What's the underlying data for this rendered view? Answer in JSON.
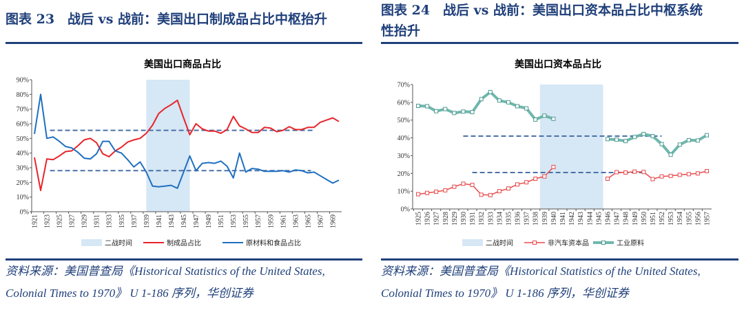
{
  "left": {
    "figure_title": "图表 23　战后 vs 战前：美国出口制成品占比中枢抬升",
    "source_line1": "资料来源：美国普查局《Historical Statistics of the United States,",
    "source_line2": "Colonial Times to 1970》 U 1-186 序列，华创证券"
  },
  "right": {
    "figure_title_line1": "图表 24　战后 vs 战前：美国出口资本品占比中枢系统",
    "figure_title_line2": "性抬升",
    "source_line1": "资料来源：美国普查局《Historical Statistics of the United States,",
    "source_line2": "Colonial Times to 1970》 U 1-186 序列，华创证券"
  },
  "colors": {
    "accent": "#1f3f7a",
    "red": "#e8242a",
    "blue": "#1f6fc0",
    "teal": "#6fb7ad",
    "capital_red": "#e8484a",
    "shade": "#d6e7f5",
    "dash": "#4a70a8"
  },
  "chart_data": [
    {
      "type": "line",
      "title": "美国出口商品占比",
      "ylim": [
        0,
        90
      ],
      "yticks": [
        "0%",
        "10%",
        "20%",
        "30%",
        "40%",
        "50%",
        "60%",
        "70%",
        "80%",
        "90%"
      ],
      "x": [
        1921,
        1922,
        1923,
        1924,
        1925,
        1926,
        1927,
        1928,
        1929,
        1930,
        1931,
        1932,
        1933,
        1934,
        1935,
        1936,
        1937,
        1938,
        1939,
        1940,
        1941,
        1942,
        1943,
        1944,
        1945,
        1946,
        1947,
        1948,
        1949,
        1950,
        1951,
        1952,
        1953,
        1954,
        1955,
        1956,
        1957,
        1958,
        1959,
        1960,
        1961,
        1962,
        1963,
        1964,
        1965,
        1966,
        1967,
        1968,
        1969,
        1970
      ],
      "xtick_labels": [
        "1921",
        "1923",
        "1925",
        "1927",
        "1929",
        "1931",
        "1933",
        "1935",
        "1937",
        "1939",
        "1941",
        "1943",
        "1945",
        "1947",
        "1949",
        "1951",
        "1953",
        "1955",
        "1957",
        "1959",
        "1961",
        "1963",
        "1965",
        "1967",
        "1969"
      ],
      "shaded_period": {
        "name": "二战时间",
        "from": 1939,
        "to": 1946
      },
      "series": [
        {
          "name": "制成品占比",
          "color": "#e8242a",
          "values": [
            37,
            14.5,
            36,
            35.5,
            38,
            41,
            41.5,
            45,
            49,
            50,
            47,
            39.5,
            37.5,
            41.5,
            44,
            47.5,
            49,
            50,
            53.5,
            59,
            67,
            70.5,
            73,
            76,
            64,
            52.5,
            60,
            56.5,
            55,
            55,
            53.5,
            56,
            65,
            58.5,
            56.5,
            54,
            54,
            57.5,
            57,
            54.5,
            55.5,
            58,
            56,
            56,
            57.5,
            57.5,
            61,
            62.5,
            64,
            61.5
          ]
        },
        {
          "name": "原材料和食品占比",
          "color": "#1f6fc0",
          "values": [
            53,
            80,
            50,
            51,
            48,
            44.5,
            43.5,
            40.5,
            36.5,
            36,
            39.5,
            48,
            48,
            41.5,
            40,
            35.5,
            30.5,
            34,
            27,
            17.5,
            17,
            17.5,
            18,
            16,
            27,
            38,
            28,
            33,
            33.5,
            33,
            34.5,
            31,
            23,
            40,
            27,
            29.5,
            29,
            27.5,
            27.5,
            27.5,
            28,
            27,
            28.5,
            28,
            26.5,
            27,
            24.5,
            22,
            19.5,
            21.5
          ]
        }
      ],
      "reference_lines": [
        {
          "value": 55.5,
          "from": 1923.5,
          "to": 1966
        },
        {
          "value": 28,
          "from": 1923.5,
          "to": 1965.5
        }
      ],
      "legend": "bottom"
    },
    {
      "type": "line",
      "title": "美国出口资本品占比",
      "ylim": [
        0,
        70
      ],
      "yticks": [
        "0%",
        "10%",
        "20%",
        "30%",
        "40%",
        "50%",
        "60%",
        "70%"
      ],
      "x": [
        1925,
        1926,
        1927,
        1928,
        1929,
        1930,
        1931,
        1932,
        1933,
        1934,
        1935,
        1936,
        1937,
        1938,
        1939,
        1940,
        1941,
        1942,
        1943,
        1944,
        1945,
        1946,
        1947,
        1948,
        1949,
        1950,
        1951,
        1952,
        1953,
        1954,
        1955,
        1956,
        1957
      ],
      "xtick_labels": [
        "1925",
        "1926",
        "1927",
        "1928",
        "1929",
        "1930",
        "1931",
        "1932",
        "1933",
        "1934",
        "1935",
        "1936",
        "1937",
        "1938",
        "1939",
        "1940",
        "1941",
        "1942",
        "1943",
        "1944",
        "1945",
        "1946",
        "1947",
        "1948",
        "1949",
        "1950",
        "1951",
        "1952",
        "1953",
        "1954",
        "1955",
        "1956",
        "1957"
      ],
      "shaded_period": {
        "name": "二战时间",
        "from": 1938.5,
        "to": 1945.5
      },
      "series": [
        {
          "name": "非汽车资本品",
          "color": "#e8484a",
          "marker": "square",
          "values": [
            8.3,
            9,
            9.7,
            10.5,
            12.5,
            14.2,
            13.5,
            8,
            7.8,
            10,
            11.5,
            13.8,
            15,
            17,
            18.3,
            23.6,
            null,
            null,
            null,
            null,
            null,
            17,
            20.7,
            20.5,
            21,
            20.8,
            16.8,
            18.3,
            18.6,
            19.2,
            19.6,
            20,
            21.3
          ]
        },
        {
          "name": "工业原料",
          "color": "#6fb7ad",
          "marker": "square",
          "values": [
            58,
            57.8,
            55,
            56.2,
            54,
            54.8,
            54.5,
            61.8,
            65.8,
            61,
            60,
            57.8,
            56.6,
            50.3,
            52.5,
            50.7,
            null,
            null,
            null,
            null,
            null,
            39.3,
            39,
            38.2,
            40.5,
            42.2,
            41,
            36.5,
            30.5,
            36.2,
            38.7,
            38.5,
            41.5
          ]
        }
      ],
      "reference_lines": [
        {
          "value": 41,
          "from": 1930,
          "to": 1952
        },
        {
          "value": 20.5,
          "from": 1931,
          "to": 1950
        }
      ],
      "legend": "bottom"
    }
  ]
}
